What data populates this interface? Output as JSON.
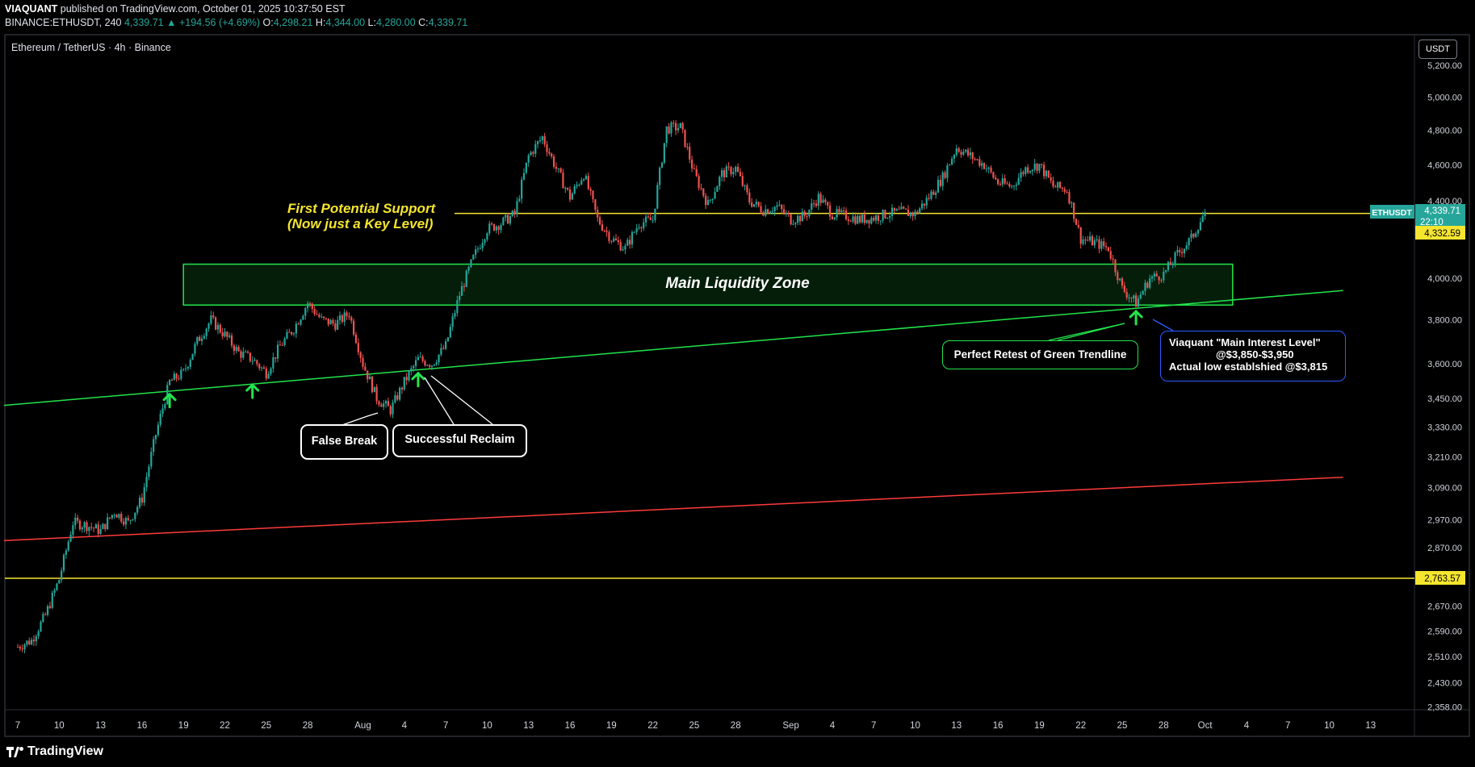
{
  "header": {
    "publisher": "VIAQUANT",
    "published_text": "published on TradingView.com, October 01, 2025 10:37:50 EST",
    "symbol_line": "BINANCE:ETHUSDT, 240",
    "last_price": "4,339.71",
    "change": "▲ +194.56 (+4.69%)",
    "o_label": "O:",
    "o": "4,298.21",
    "h_label": "H:",
    "h": "4,344.00",
    "l_label": "L:",
    "l": "4,280.00",
    "c_label": "C:",
    "c": "4,339.71"
  },
  "symbol_title": "Ethereum / TetherUS · 4h · Binance",
  "currency_button": "USDT",
  "brand": "TradingView",
  "colors": {
    "background": "#000000",
    "up": "#26a69a",
    "down": "#ef5350",
    "yellow_level": "#f5e52f",
    "green_trend": "#22e44b",
    "red_trend": "#ff3b3b",
    "blue_callout": "#2b5cff"
  },
  "annotations": {
    "first_support_line1": "First Potential Support",
    "first_support_line2": "(Now just a Key  Level)",
    "main_zone": "Main Liquidity Zone",
    "false_break": "False Break",
    "reclaim": "Successful Reclaim",
    "retest": "Perfect Retest of Green Trendline",
    "viaquant_line1": "Viaquant \"Main Interest Level\"",
    "viaquant_line2": "@$3,850-$3,950",
    "viaquant_line3": "Actual low establshied @$3,815"
  },
  "price_labels": {
    "symbol_tag": "ETHUSDT",
    "last": "4,339.71",
    "countdown": "22:10",
    "yellow_upper": "4,332.59",
    "yellow_lower": "2,763.57"
  },
  "chart_data": {
    "type": "candlestick",
    "symbol": "BINANCE:ETHUSDT",
    "interval": "240",
    "scale": "log",
    "ylim": [
      2300,
      5300
    ],
    "y_ticks": [
      "5,200.00",
      "5,000.00",
      "4,800.00",
      "4,600.00",
      "4,400.00",
      "4,000.00",
      "3,800.00",
      "3,600.00",
      "3,450.00",
      "3,330.00",
      "3,210.00",
      "3,090.00",
      "2,970.00",
      "2,870.00",
      "2,670.00",
      "2,590.00",
      "2,510.00",
      "2,430.00",
      "2,358.00"
    ],
    "x_ticks": [
      "7",
      "10",
      "13",
      "16",
      "19",
      "22",
      "25",
      "28",
      "Aug",
      "4",
      "7",
      "10",
      "13",
      "16",
      "19",
      "22",
      "25",
      "28",
      "Sep",
      "4",
      "7",
      "10",
      "13",
      "16",
      "19",
      "22",
      "25",
      "28",
      "Oct",
      "4",
      "7",
      "10",
      "13"
    ],
    "price_path": [
      [
        "2025-07-07",
        2540
      ],
      [
        "2025-07-08",
        2560
      ],
      [
        "2025-07-09",
        2640
      ],
      [
        "2025-07-10",
        2760
      ],
      [
        "2025-07-11",
        2960
      ],
      [
        "2025-07-12",
        2950
      ],
      [
        "2025-07-13",
        2930
      ],
      [
        "2025-07-14",
        3000
      ],
      [
        "2025-07-15",
        2960
      ],
      [
        "2025-07-16",
        3050
      ],
      [
        "2025-07-17",
        3300
      ],
      [
        "2025-07-18",
        3520
      ],
      [
        "2025-07-19",
        3560
      ],
      [
        "2025-07-20",
        3700
      ],
      [
        "2025-07-21",
        3800
      ],
      [
        "2025-07-22",
        3730
      ],
      [
        "2025-07-23",
        3650
      ],
      [
        "2025-07-24",
        3620
      ],
      [
        "2025-07-25",
        3560
      ],
      [
        "2025-07-26",
        3680
      ],
      [
        "2025-07-27",
        3760
      ],
      [
        "2025-07-28",
        3880
      ],
      [
        "2025-07-29",
        3800
      ],
      [
        "2025-07-30",
        3780
      ],
      [
        "2025-07-31",
        3830
      ],
      [
        "2025-08-01",
        3600
      ],
      [
        "2025-08-02",
        3450
      ],
      [
        "2025-08-03",
        3400
      ],
      [
        "2025-08-04",
        3520
      ],
      [
        "2025-08-05",
        3620
      ],
      [
        "2025-08-06",
        3600
      ],
      [
        "2025-08-07",
        3680
      ],
      [
        "2025-08-08",
        3920
      ],
      [
        "2025-08-09",
        4100
      ],
      [
        "2025-08-10",
        4250
      ],
      [
        "2025-08-11",
        4280
      ],
      [
        "2025-08-12",
        4330
      ],
      [
        "2025-08-13",
        4650
      ],
      [
        "2025-08-14",
        4760
      ],
      [
        "2025-08-15",
        4580
      ],
      [
        "2025-08-16",
        4420
      ],
      [
        "2025-08-17",
        4550
      ],
      [
        "2025-08-18",
        4300
      ],
      [
        "2025-08-19",
        4200
      ],
      [
        "2025-08-20",
        4150
      ],
      [
        "2025-08-21",
        4280
      ],
      [
        "2025-08-22",
        4300
      ],
      [
        "2025-08-23",
        4810
      ],
      [
        "2025-08-24",
        4820
      ],
      [
        "2025-08-25",
        4550
      ],
      [
        "2025-08-26",
        4380
      ],
      [
        "2025-08-27",
        4550
      ],
      [
        "2025-08-28",
        4580
      ],
      [
        "2025-08-29",
        4400
      ],
      [
        "2025-08-30",
        4350
      ],
      [
        "2025-08-31",
        4370
      ],
      [
        "2025-09-01",
        4300
      ],
      [
        "2025-09-02",
        4320
      ],
      [
        "2025-09-03",
        4420
      ],
      [
        "2025-09-04",
        4330
      ],
      [
        "2025-09-05",
        4320
      ],
      [
        "2025-09-06",
        4300
      ],
      [
        "2025-09-07",
        4310
      ],
      [
        "2025-09-08",
        4330
      ],
      [
        "2025-09-09",
        4340
      ],
      [
        "2025-09-10",
        4330
      ],
      [
        "2025-09-11",
        4420
      ],
      [
        "2025-09-12",
        4530
      ],
      [
        "2025-09-13",
        4700
      ],
      [
        "2025-09-14",
        4650
      ],
      [
        "2025-09-15",
        4600
      ],
      [
        "2025-09-16",
        4500
      ],
      [
        "2025-09-17",
        4480
      ],
      [
        "2025-09-18",
        4580
      ],
      [
        "2025-09-19",
        4600
      ],
      [
        "2025-09-20",
        4480
      ],
      [
        "2025-09-21",
        4460
      ],
      [
        "2025-09-22",
        4200
      ],
      [
        "2025-09-23",
        4180
      ],
      [
        "2025-09-24",
        4150
      ],
      [
        "2025-09-25",
        3950
      ],
      [
        "2025-09-26",
        3880
      ],
      [
        "2025-09-27",
        4000
      ],
      [
        "2025-09-28",
        4020
      ],
      [
        "2025-09-29",
        4120
      ],
      [
        "2025-09-30",
        4200
      ],
      [
        "2025-10-01",
        4339.71
      ]
    ],
    "levels": [
      {
        "price": 4332.59,
        "color": "#f5e52f"
      },
      {
        "price": 2763.57,
        "color": "#f5e52f"
      }
    ],
    "zones": [
      {
        "name": "Main Liquidity Zone",
        "from": 3870,
        "to": 4070,
        "start": "2025-07-19",
        "end": "2025-10-03"
      }
    ],
    "trendlines": [
      {
        "color": "#22e44b",
        "start": [
          "2025-07-06",
          3420
        ],
        "end": [
          "2025-10-11",
          3940
        ]
      },
      {
        "color": "#ff3b3b",
        "start": [
          "2025-07-06",
          2895
        ],
        "end": [
          "2025-10-11",
          3130
        ]
      }
    ],
    "markers": [
      {
        "type": "up-arrow",
        "date": "2025-07-18",
        "price": 3440
      },
      {
        "type": "up-arrow",
        "date": "2025-07-24",
        "price": 3480
      },
      {
        "type": "up-arrow",
        "date": "2025-08-05",
        "price": 3530
      },
      {
        "type": "up-arrow",
        "date": "2025-09-26",
        "price": 3810
      }
    ]
  }
}
